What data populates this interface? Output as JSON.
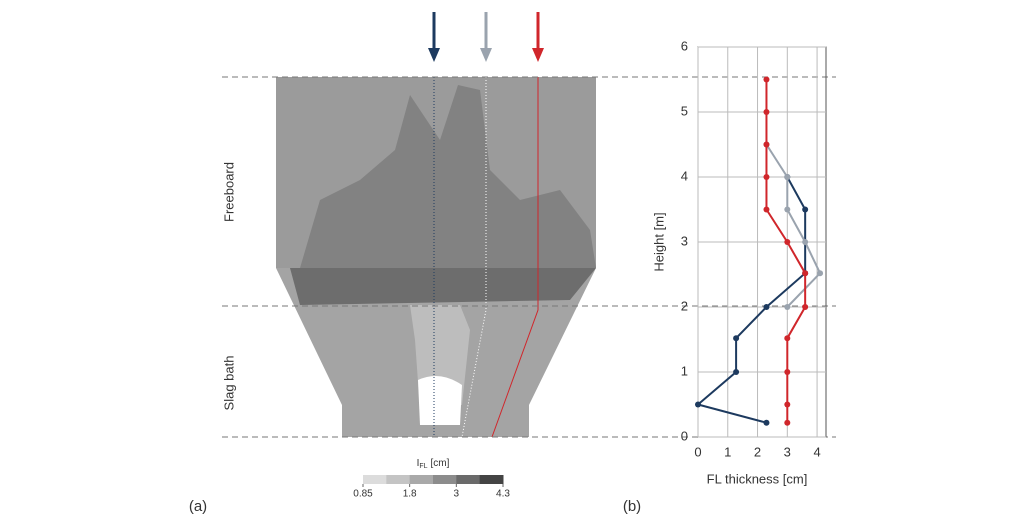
{
  "panel_labels": [
    "(a)",
    "(b)"
  ],
  "regions": [
    "Freeboard",
    "Slag bath"
  ],
  "chart_data": [
    {
      "type": "colorbar",
      "title": [
        "I",
        "FL",
        "[cm]"
      ],
      "ticks": [
        0.85,
        1.8,
        3.0,
        4.3
      ],
      "colors": [
        "#dcdcdc",
        "#c4c4c4",
        "#a9a9a9",
        "#8c8c8c",
        "#6a6a6a",
        "#444444"
      ]
    },
    {
      "type": "line",
      "xlabel": "FL thickness [cm]",
      "ylabel": "Height [m]",
      "xlim": [
        0,
        4.3
      ],
      "xticks": [
        0,
        1,
        2,
        3,
        4
      ],
      "ylim": [
        0,
        6
      ],
      "yticks": [
        0,
        1,
        2,
        3,
        4,
        5,
        6
      ],
      "grid": true,
      "series": [
        {
          "color": "#1d3a5f",
          "x": [
            2.3,
            0,
            1.28,
            1.28,
            2.3,
            3.6,
            3.6,
            3.0
          ],
          "values": [
            0.22,
            0.5,
            1.0,
            1.52,
            2.0,
            2.52,
            3.5,
            4.0
          ]
        },
        {
          "color": "#9aa3ae",
          "x": [
            3.0,
            4.1,
            3.6,
            3.0,
            3.0,
            2.3
          ],
          "values": [
            2.0,
            2.52,
            3.0,
            3.5,
            4.0,
            4.5
          ]
        },
        {
          "color": "#d0262b",
          "x": [
            3.0,
            3.0,
            3.0,
            3.0,
            3.6,
            3.6,
            3.0,
            2.3,
            2.3,
            2.3,
            2.3,
            2.3
          ],
          "values": [
            0.22,
            0.5,
            1.0,
            1.52,
            2.0,
            2.52,
            3.0,
            3.5,
            4.0,
            4.5,
            5.0,
            5.5
          ]
        }
      ]
    }
  ]
}
